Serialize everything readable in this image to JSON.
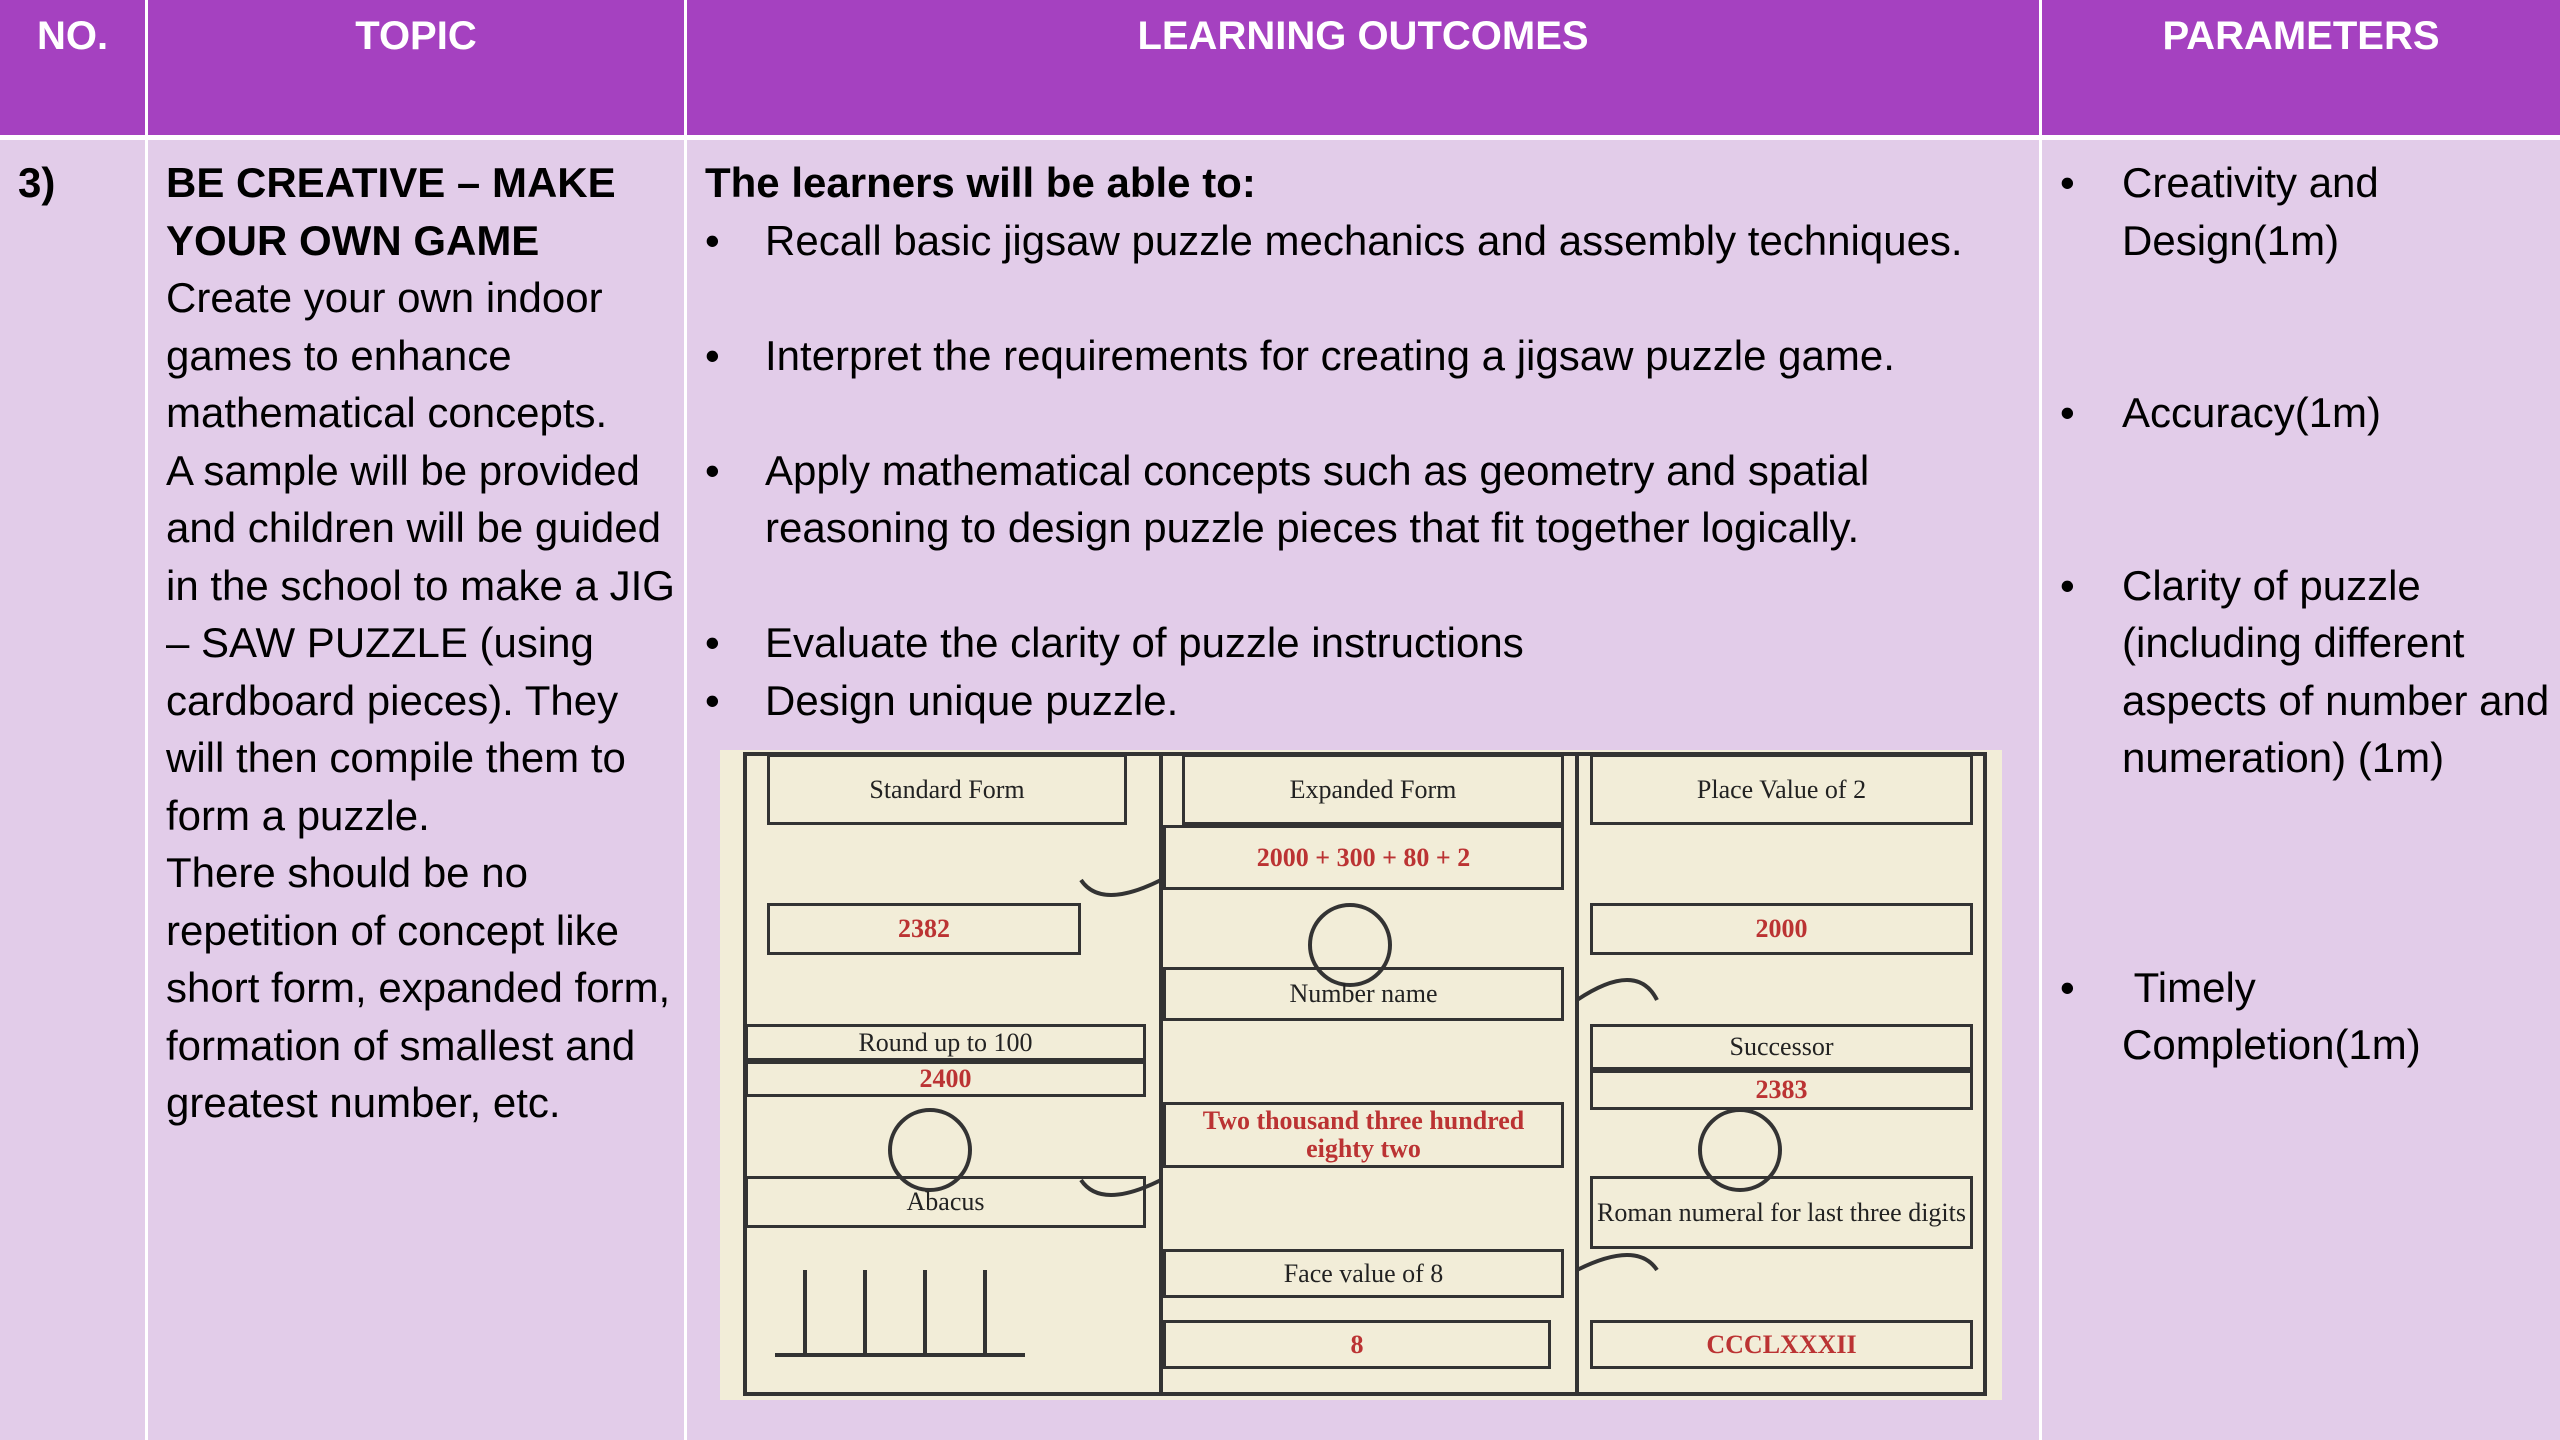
{
  "table": {
    "header": [
      "NO.",
      "TOPIC",
      "LEARNING OUTCOMES",
      "PARAMETERS"
    ],
    "row": {
      "no": "3)",
      "topic": {
        "title": "BE CREATIVE – MAKE YOUR OWN GAME",
        "paragraphs": [
          "Create your own indoor games to enhance mathematical concepts.",
          "A sample will be provided and children will be guided in the school to make a  JIG – SAW PUZZLE (using cardboard pieces). They will then compile them to form a puzzle.",
          "There should be no repetition of concept like short form, expanded form, formation of smallest and greatest number, etc."
        ]
      },
      "outcomes": {
        "intro": "The learners will be able to:",
        "items": [
          "Recall basic jigsaw puzzle mechanics and assembly techniques.",
          "Interpret the requirements for creating a jigsaw puzzle game.",
          "Apply mathematical concepts such as geometry and spatial reasoning to design puzzle pieces that fit together logically.",
          "Evaluate the clarity of puzzle instructions",
          "Design unique puzzle."
        ]
      },
      "parameters": [
        "Creativity and Design(1m)",
        "Accuracy(1m)",
        "Clarity of puzzle (including different aspects of number and numeration) (1m)",
        " Timely Completion(1m)"
      ]
    }
  },
  "puzzle": {
    "pieces": [
      "Standard Form",
      "Expanded Form",
      "Place Value of 2",
      "2000 + 300 + 80 + 2",
      "2382",
      "2000",
      "Number name",
      "Round up to 100",
      "2400",
      "Successor",
      "2383",
      "Two thousand three hundred eighty two",
      "Abacus",
      "Roman numeral for last three digits",
      "Face value of 8",
      "8",
      "CCCLXXXII"
    ]
  }
}
